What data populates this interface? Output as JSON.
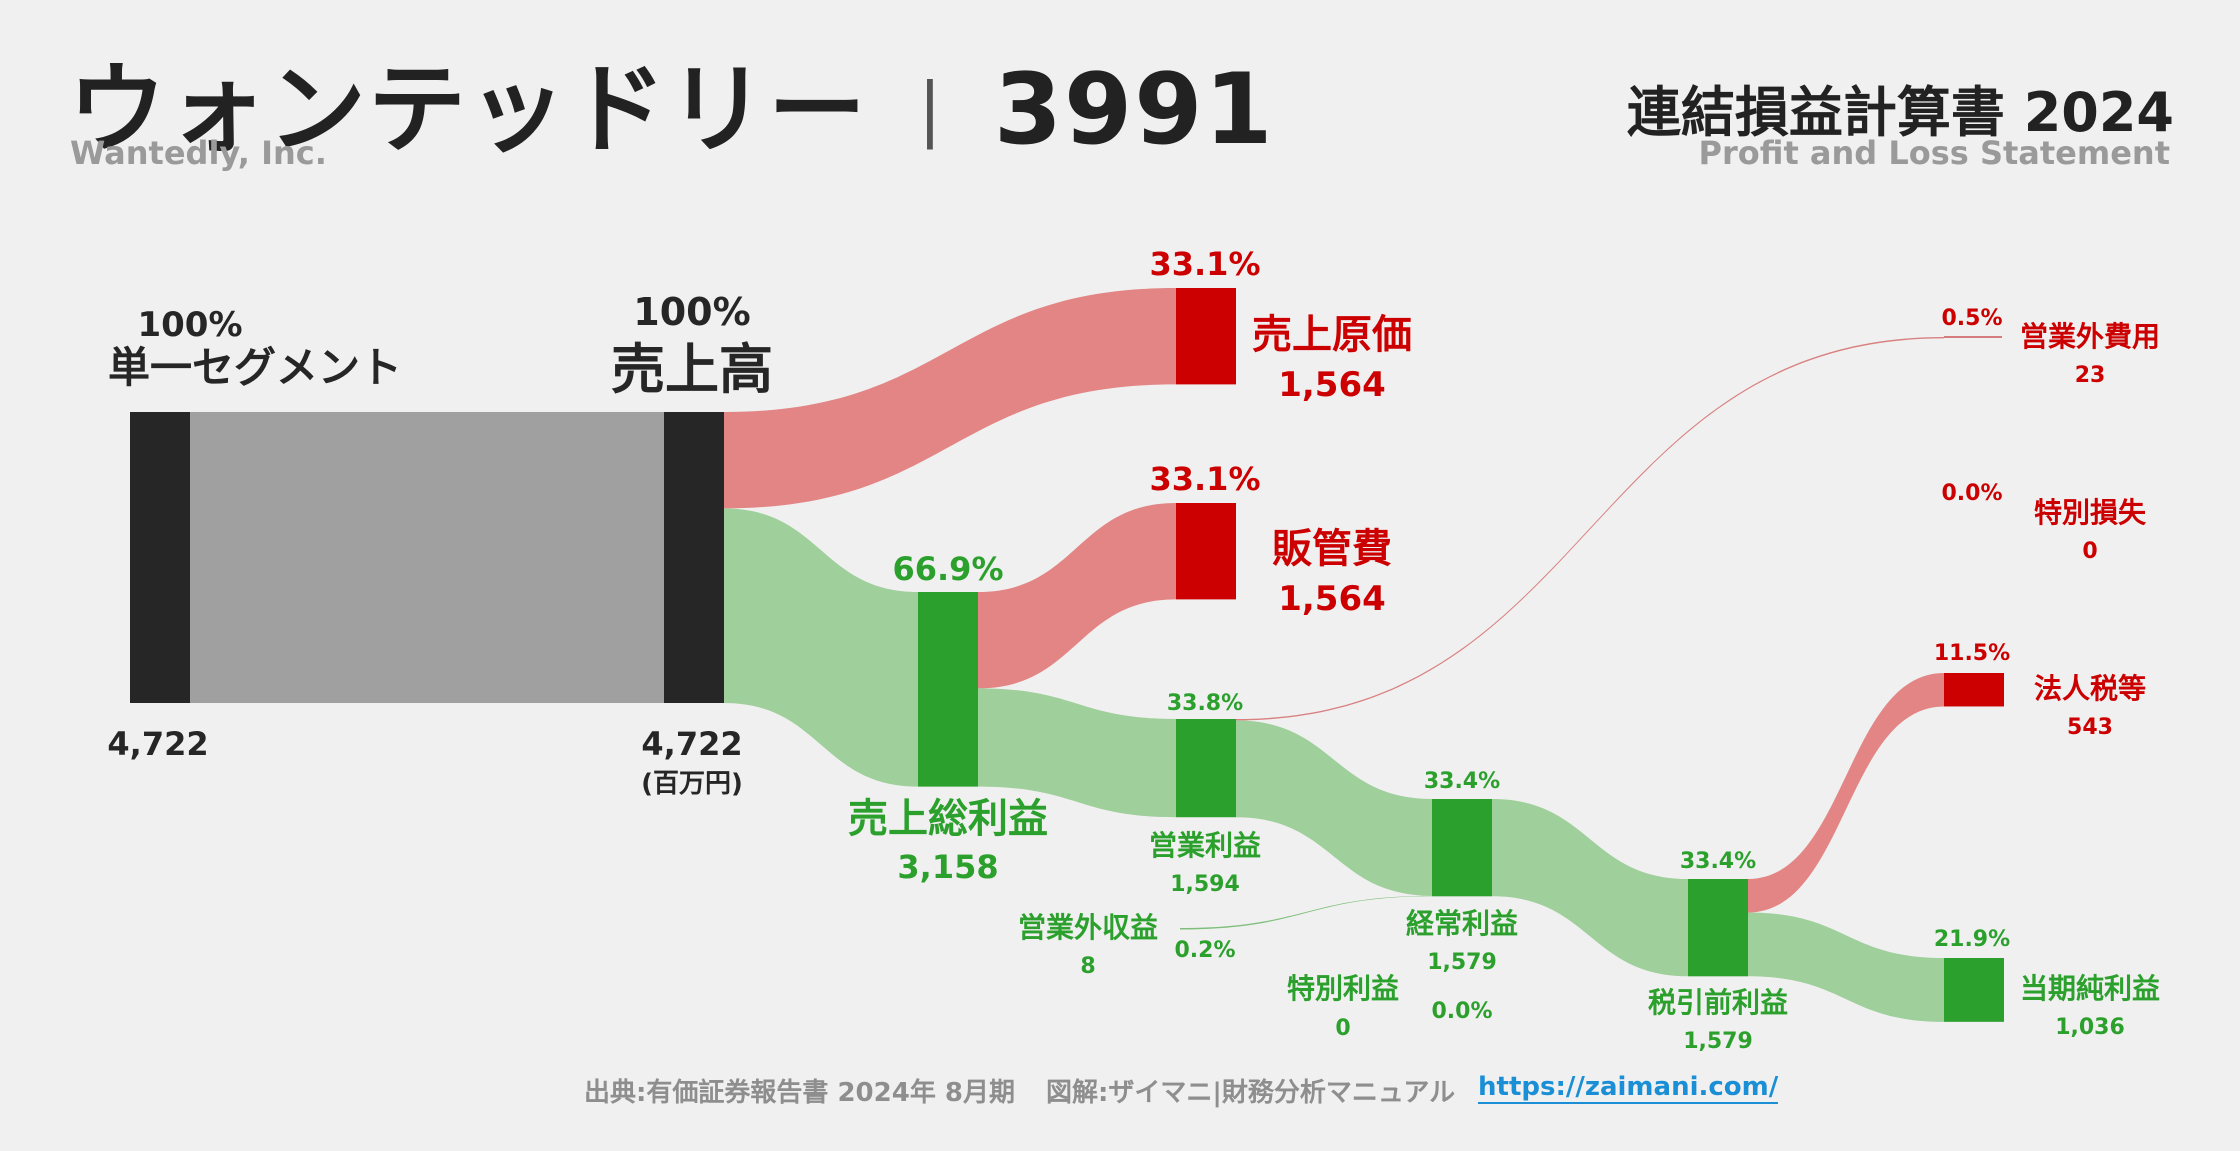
{
  "header": {
    "company": "ウォンテッドリー",
    "separator": "|",
    "ticker": "3991",
    "company_en": "Wantedly, Inc.",
    "statement": "連結損益計算書 2024",
    "statement_en": "Profit and Loss Statement"
  },
  "footer": {
    "source": "出典:有価証券報告書 2024年 8月期",
    "credit": "図解:ザイマニ|財務分析マニュアル",
    "url": "https://zaimani.com/"
  },
  "chart_data": {
    "type": "sankey",
    "unit": "(百万円)",
    "colors": {
      "dark": "#262626",
      "revenue_flow": "#a0a0a0",
      "profit": "#2ca02c",
      "profit_flow": "#9fcf9b",
      "cost": "#cc0000",
      "cost_flow": "#e28584"
    },
    "nodes": [
      {
        "id": "segment",
        "label": "単一セグメント",
        "pct": "100%",
        "value": "4,722"
      },
      {
        "id": "revenue",
        "label": "売上高",
        "pct": "100%",
        "value": "4,722"
      },
      {
        "id": "cogs",
        "label": "売上原価",
        "pct": "33.1%",
        "value": "1,564"
      },
      {
        "id": "gross",
        "label": "売上総利益",
        "pct": "66.9%",
        "value": "3,158"
      },
      {
        "id": "sga",
        "label": "販管費",
        "pct": "33.1%",
        "value": "1,564"
      },
      {
        "id": "operating",
        "label": "営業利益",
        "pct": "33.8%",
        "value": "1,594"
      },
      {
        "id": "nonop_income",
        "label": "営業外収益",
        "pct": "0.2%",
        "value": "8"
      },
      {
        "id": "nonop_expense",
        "label": "営業外費用",
        "pct": "0.5%",
        "value": "23"
      },
      {
        "id": "ordinary",
        "label": "経常利益",
        "pct": "33.4%",
        "value": "1,579"
      },
      {
        "id": "extra_income",
        "label": "特別利益",
        "pct": "0.0%",
        "value": "0"
      },
      {
        "id": "extra_loss",
        "label": "特別損失",
        "pct": "0.0%",
        "value": "0"
      },
      {
        "id": "pretax",
        "label": "税引前利益",
        "pct": "33.4%",
        "value": "1,579"
      },
      {
        "id": "tax",
        "label": "法人税等",
        "pct": "11.5%",
        "value": "543"
      },
      {
        "id": "net",
        "label": "当期純利益",
        "pct": "21.9%",
        "value": "1,036"
      }
    ],
    "links": [
      {
        "source": "segment",
        "target": "revenue",
        "value": 4722
      },
      {
        "source": "revenue",
        "target": "cogs",
        "value": 1564
      },
      {
        "source": "revenue",
        "target": "gross",
        "value": 3158
      },
      {
        "source": "gross",
        "target": "sga",
        "value": 1564
      },
      {
        "source": "gross",
        "target": "operating",
        "value": 1594
      },
      {
        "source": "operating",
        "target": "nonop_expense",
        "value": 23
      },
      {
        "source": "operating",
        "target": "ordinary",
        "value": 1571
      },
      {
        "source": "nonop_income",
        "target": "ordinary",
        "value": 8
      },
      {
        "source": "ordinary",
        "target": "pretax",
        "value": 1579
      },
      {
        "source": "pretax",
        "target": "tax",
        "value": 543
      },
      {
        "source": "pretax",
        "target": "net",
        "value": 1036
      }
    ]
  }
}
